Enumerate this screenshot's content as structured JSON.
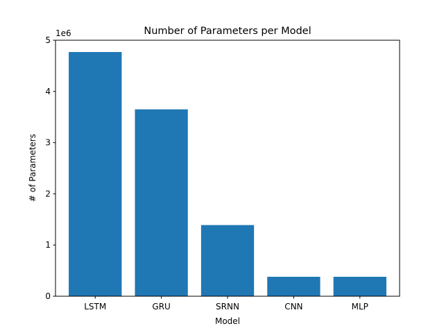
{
  "chart_data": {
    "type": "bar",
    "title": "Number of Parameters per Model",
    "xlabel": "Model",
    "ylabel": "# of Parameters",
    "y_offset_label": "1e6",
    "categories": [
      "LSTM",
      "GRU",
      "SRNN",
      "CNN",
      "MLP"
    ],
    "values": [
      4770000,
      3650000,
      1390000,
      380000,
      380000
    ],
    "ylim": [
      0,
      5000000
    ],
    "y_ticks": [
      0,
      1000000,
      2000000,
      3000000,
      4000000,
      5000000
    ],
    "y_tick_labels": [
      "0",
      "1",
      "2",
      "3",
      "4",
      "5"
    ],
    "bar_color": "#1f77b4",
    "grid": false,
    "legend": "none"
  }
}
